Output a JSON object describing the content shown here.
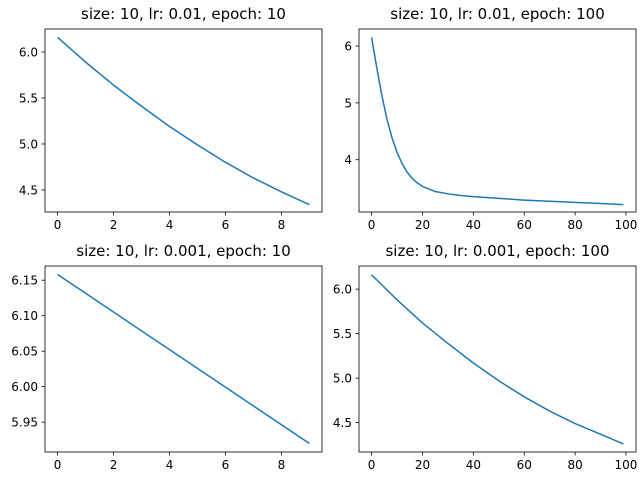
{
  "figure": {
    "line_color": "#1f77b4",
    "axis_color": "#000000",
    "background": "#ffffff"
  },
  "chart_data": [
    {
      "type": "line",
      "title": "size: 10, lr: 0.01, epoch: 10",
      "xlabel": "",
      "ylabel": "",
      "xlim": [
        -0.45,
        9.45
      ],
      "ylim": [
        4.26,
        6.25
      ],
      "xticks": [
        0,
        2,
        4,
        6,
        8
      ],
      "yticks": [
        4.5,
        5.0,
        5.5,
        6.0
      ],
      "xtick_labels": [
        "0",
        "2",
        "4",
        "6",
        "8"
      ],
      "ytick_labels": [
        "4.5",
        "5.0",
        "5.5",
        "6.0"
      ],
      "grid": false,
      "series": [
        {
          "x": [
            0,
            1,
            2,
            3,
            4,
            5,
            6,
            7,
            8,
            9
          ],
          "y": [
            6.16,
            5.89,
            5.64,
            5.41,
            5.19,
            4.99,
            4.8,
            4.63,
            4.48,
            4.34
          ]
        }
      ]
    },
    {
      "type": "line",
      "title": "size: 10, lr: 0.01, epoch: 100",
      "xlabel": "",
      "ylabel": "",
      "xlim": [
        -4.95,
        103.95
      ],
      "ylim": [
        3.08,
        6.3
      ],
      "xticks": [
        0,
        20,
        40,
        60,
        80,
        100
      ],
      "yticks": [
        4,
        5,
        6
      ],
      "xtick_labels": [
        "0",
        "20",
        "40",
        "60",
        "80",
        "100"
      ],
      "ytick_labels": [
        "4",
        "5",
        "6"
      ],
      "grid": false,
      "series": [
        {
          "x": [
            0,
            2,
            4,
            6,
            8,
            10,
            12,
            14,
            16,
            18,
            20,
            25,
            30,
            35,
            40,
            50,
            60,
            70,
            80,
            90,
            99
          ],
          "y": [
            6.15,
            5.63,
            5.14,
            4.72,
            4.39,
            4.13,
            3.93,
            3.78,
            3.67,
            3.59,
            3.53,
            3.44,
            3.4,
            3.37,
            3.35,
            3.32,
            3.29,
            3.27,
            3.25,
            3.23,
            3.21
          ]
        }
      ]
    },
    {
      "type": "line",
      "title": "size: 10, lr: 0.001, epoch: 10",
      "xlabel": "",
      "ylabel": "",
      "xlim": [
        -0.45,
        9.45
      ],
      "ylim": [
        5.908,
        6.17
      ],
      "xticks": [
        0,
        2,
        4,
        6,
        8
      ],
      "yticks": [
        5.95,
        6.0,
        6.05,
        6.1,
        6.15
      ],
      "xtick_labels": [
        "0",
        "2",
        "4",
        "6",
        "8"
      ],
      "ytick_labels": [
        "5.95",
        "6.00",
        "6.05",
        "6.10",
        "6.15"
      ],
      "grid": false,
      "series": [
        {
          "x": [
            0,
            9
          ],
          "y": [
            6.158,
            5.92
          ]
        }
      ]
    },
    {
      "type": "line",
      "title": "size: 10, lr: 0.001, epoch: 100",
      "xlabel": "",
      "ylabel": "",
      "xlim": [
        -4.95,
        103.95
      ],
      "ylim": [
        4.17,
        6.26
      ],
      "xticks": [
        0,
        20,
        40,
        60,
        80,
        100
      ],
      "yticks": [
        4.5,
        5.0,
        5.5,
        6.0
      ],
      "xtick_labels": [
        "0",
        "20",
        "40",
        "60",
        "80",
        "100"
      ],
      "ytick_labels": [
        "4.5",
        "5.0",
        "5.5",
        "6.0"
      ],
      "grid": false,
      "series": [
        {
          "x": [
            0,
            10,
            20,
            30,
            40,
            50,
            60,
            70,
            80,
            90,
            99
          ],
          "y": [
            6.16,
            5.88,
            5.62,
            5.39,
            5.17,
            4.97,
            4.79,
            4.63,
            4.49,
            4.37,
            4.26
          ]
        }
      ]
    }
  ]
}
